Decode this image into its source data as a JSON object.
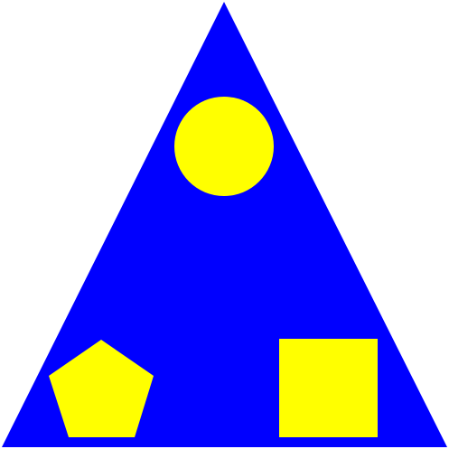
{
  "background_color": "#ffffff",
  "shapes": {
    "triangle": {
      "name": "triangle",
      "color": "#0000ff"
    },
    "circle": {
      "name": "circle",
      "color": "#ffff00"
    },
    "pentagon": {
      "name": "pentagon",
      "color": "#ffff00"
    },
    "square": {
      "name": "square",
      "color": "#ffff00"
    }
  }
}
